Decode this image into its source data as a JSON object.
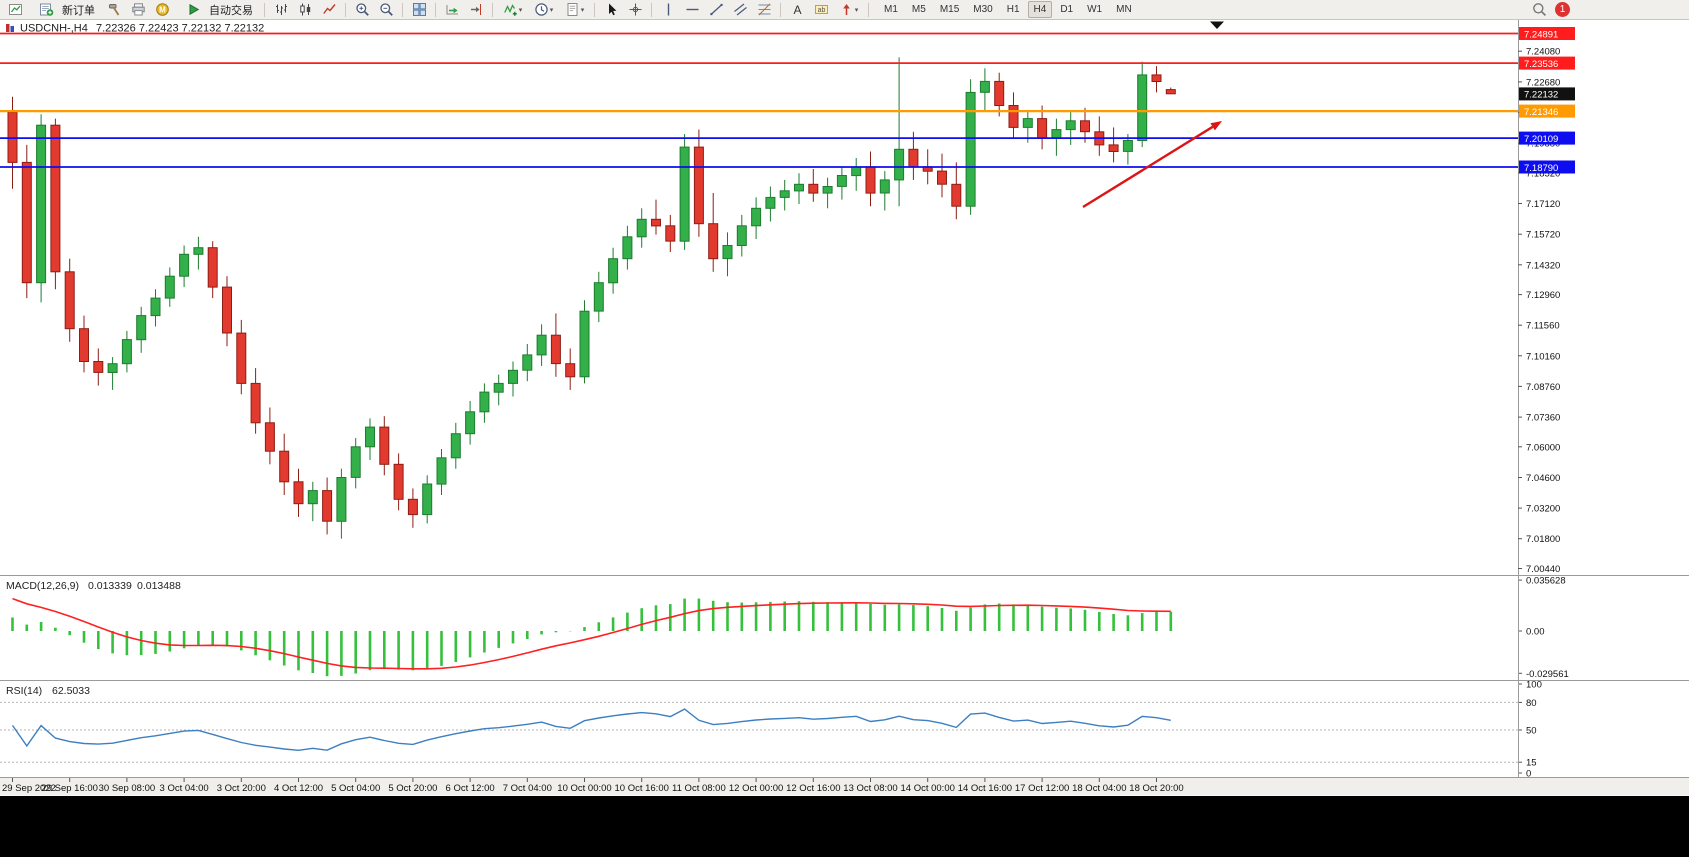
{
  "toolbar": {
    "items": [
      {
        "type": "icon",
        "name": "new-chart"
      },
      {
        "type": "button",
        "name": "new-order",
        "label": "新订单",
        "icon": "order-ticket"
      },
      {
        "type": "icon",
        "name": "hammer"
      },
      {
        "type": "icon",
        "name": "print"
      },
      {
        "type": "icon",
        "name": "community"
      },
      {
        "type": "button",
        "name": "autotrade",
        "label": "自动交易",
        "icon": "autotrade-play"
      },
      {
        "type": "sep"
      },
      {
        "type": "icon",
        "name": "bar-chart"
      },
      {
        "type": "icon",
        "name": "candle-chart"
      },
      {
        "type": "icon",
        "name": "line-chart"
      },
      {
        "type": "sep"
      },
      {
        "type": "icon",
        "name": "zoom-in"
      },
      {
        "type": "icon",
        "name": "zoom-out"
      },
      {
        "type": "sep"
      },
      {
        "type": "icon",
        "name": "tile-windows"
      },
      {
        "type": "sep"
      },
      {
        "type": "icon",
        "name": "auto-scroll"
      },
      {
        "type": "icon",
        "name": "chart-shift"
      },
      {
        "type": "sep"
      },
      {
        "type": "icon",
        "name": "indicators",
        "dropdown": true
      },
      {
        "type": "icon",
        "name": "periods",
        "dropdown": true
      },
      {
        "type": "icon",
        "name": "templates",
        "dropdown": true
      },
      {
        "type": "sep"
      },
      {
        "type": "icon",
        "name": "cursor"
      },
      {
        "type": "icon",
        "name": "crosshair"
      },
      {
        "type": "sep"
      },
      {
        "type": "icon",
        "name": "vertical-line"
      },
      {
        "type": "icon",
        "name": "horizontal-line"
      },
      {
        "type": "icon",
        "name": "trendline"
      },
      {
        "type": "icon",
        "name": "equidistant-channel"
      },
      {
        "type": "icon",
        "name": "fibonacci"
      },
      {
        "type": "sep"
      },
      {
        "type": "icon",
        "name": "text"
      },
      {
        "type": "icon",
        "name": "text-label"
      },
      {
        "type": "icon",
        "name": "arrows-tool",
        "dropdown": true
      },
      {
        "type": "sep"
      }
    ],
    "timeframes": [
      "M1",
      "M5",
      "M15",
      "M30",
      "H1",
      "H4",
      "D1",
      "W1",
      "MN"
    ],
    "active_timeframe": "H4",
    "notification_count": "1"
  },
  "chart": {
    "symbol_title": "USDCNH-,H4",
    "ohlc_quote": "7.22326 7.22423 7.22132 7.22132",
    "current_price": "7.22132",
    "price_axis_labels": [
      "7.24080",
      "7.22680",
      "7.21280",
      "7.19880",
      "7.18520",
      "7.17120",
      "7.15720",
      "7.14320",
      "7.12960",
      "7.11560",
      "7.10160",
      "7.08760",
      "7.07360",
      "7.06000",
      "7.04600",
      "7.03200",
      "7.01800",
      "7.00440"
    ],
    "time_axis_labels": [
      "29 Sep 2022",
      "29 Sep 16:00",
      "30 Sep 08:00",
      "3 Oct 04:00",
      "3 Oct 20:00",
      "4 Oct 12:00",
      "5 Oct 04:00",
      "5 Oct 20:00",
      "6 Oct 12:00",
      "7 Oct 04:00",
      "10 Oct 00:00",
      "10 Oct 16:00",
      "11 Oct 08:00",
      "12 Oct 00:00",
      "12 Oct 16:00",
      "13 Oct 08:00",
      "14 Oct 00:00",
      "14 Oct 16:00",
      "17 Oct 12:00",
      "18 Oct 04:00",
      "18 Oct 20:00"
    ],
    "levels": [
      {
        "label": "7.24891",
        "price": 7.24891,
        "color": "#ff1c1c",
        "width": 1.8,
        "type": "resistance"
      },
      {
        "label": "7.23536",
        "price": 7.23536,
        "color": "#ff1c1c",
        "width": 1.8,
        "type": "resistance"
      },
      {
        "label": "7.21346",
        "price": 7.21346,
        "color": "#ff9b00",
        "width": 2.2,
        "type": "pivot"
      },
      {
        "label": "7.20109",
        "price": 7.20109,
        "color": "#0d0df0",
        "width": 1.8,
        "type": "support"
      },
      {
        "label": "7.18790",
        "price": 7.1879,
        "color": "#0d0df0",
        "width": 1.8,
        "type": "support"
      }
    ],
    "colors": {
      "up": "#33b04a",
      "up_border": "#1d7c2f",
      "down": "#e23a2e",
      "down_border": "#8e1d14",
      "macd_hist": "#35c13c",
      "macd_signal": "#ff2020",
      "rsi_line": "#3d7fc1",
      "arrow": "#dd1414",
      "current_badge": "#111111"
    },
    "annotations": [
      {
        "type": "arrow",
        "direction": "up-right",
        "color": "#dd1414"
      }
    ]
  },
  "indicators": {
    "macd": {
      "title": "MACD(12,26,9)",
      "macd_value": "0.013339",
      "signal_value": "0.013488",
      "axis_labels": [
        "0.035628",
        "0.00",
        "-0.029561"
      ],
      "params": [
        12,
        26,
        9
      ]
    },
    "rsi": {
      "title": "RSI(14)",
      "value": "62.5033",
      "axis_labels": [
        "100",
        "80",
        "50",
        "15",
        "0"
      ],
      "level_lines": [
        80,
        50,
        15
      ],
      "period": 14
    }
  },
  "chart_data": {
    "type": "candlestick",
    "symbol": "USDCNH",
    "timeframe": "H4",
    "start_date": "29 Sep 2022",
    "end_date": "18 Oct 2022",
    "ylim": [
      7.0044,
      7.24891
    ],
    "ohlc": [
      [
        7.213,
        7.22,
        7.178,
        7.19
      ],
      [
        7.19,
        7.198,
        7.128,
        7.135
      ],
      [
        7.135,
        7.212,
        7.126,
        7.207
      ],
      [
        7.207,
        7.21,
        7.132,
        7.14
      ],
      [
        7.14,
        7.146,
        7.108,
        7.114
      ],
      [
        7.114,
        7.12,
        7.094,
        7.099
      ],
      [
        7.099,
        7.105,
        7.088,
        7.094
      ],
      [
        7.094,
        7.101,
        7.086,
        7.098
      ],
      [
        7.098,
        7.113,
        7.094,
        7.109
      ],
      [
        7.109,
        7.124,
        7.103,
        7.12
      ],
      [
        7.12,
        7.132,
        7.115,
        7.128
      ],
      [
        7.128,
        7.142,
        7.124,
        7.138
      ],
      [
        7.138,
        7.152,
        7.133,
        7.148
      ],
      [
        7.148,
        7.156,
        7.141,
        7.151
      ],
      [
        7.151,
        7.154,
        7.128,
        7.133
      ],
      [
        7.133,
        7.138,
        7.106,
        7.112
      ],
      [
        7.112,
        7.118,
        7.084,
        7.089
      ],
      [
        7.089,
        7.096,
        7.066,
        7.071
      ],
      [
        7.071,
        7.078,
        7.052,
        7.058
      ],
      [
        7.058,
        7.066,
        7.038,
        7.044
      ],
      [
        7.044,
        7.05,
        7.028,
        7.034
      ],
      [
        7.034,
        7.044,
        7.026,
        7.04
      ],
      [
        7.04,
        7.046,
        7.02,
        7.026
      ],
      [
        7.026,
        7.05,
        7.018,
        7.046
      ],
      [
        7.046,
        7.064,
        7.041,
        7.06
      ],
      [
        7.06,
        7.073,
        7.054,
        7.069
      ],
      [
        7.069,
        7.074,
        7.047,
        7.052
      ],
      [
        7.052,
        7.057,
        7.031,
        7.036
      ],
      [
        7.036,
        7.041,
        7.023,
        7.029
      ],
      [
        7.029,
        7.047,
        7.025,
        7.043
      ],
      [
        7.043,
        7.059,
        7.038,
        7.055
      ],
      [
        7.055,
        7.071,
        7.05,
        7.066
      ],
      [
        7.066,
        7.081,
        7.061,
        7.076
      ],
      [
        7.076,
        7.089,
        7.071,
        7.085
      ],
      [
        7.085,
        7.093,
        7.079,
        7.089
      ],
      [
        7.089,
        7.099,
        7.083,
        7.095
      ],
      [
        7.095,
        7.107,
        7.09,
        7.102
      ],
      [
        7.102,
        7.116,
        7.097,
        7.111
      ],
      [
        7.111,
        7.121,
        7.092,
        7.098
      ],
      [
        7.098,
        7.105,
        7.086,
        7.092
      ],
      [
        7.092,
        7.127,
        7.089,
        7.122
      ],
      [
        7.122,
        7.14,
        7.117,
        7.135
      ],
      [
        7.135,
        7.151,
        7.13,
        7.146
      ],
      [
        7.146,
        7.161,
        7.141,
        7.156
      ],
      [
        7.156,
        7.169,
        7.151,
        7.164
      ],
      [
        7.164,
        7.173,
        7.157,
        7.161
      ],
      [
        7.161,
        7.166,
        7.149,
        7.154
      ],
      [
        7.154,
        7.203,
        7.15,
        7.197
      ],
      [
        7.197,
        7.205,
        7.156,
        7.162
      ],
      [
        7.162,
        7.176,
        7.14,
        7.146
      ],
      [
        7.146,
        7.158,
        7.138,
        7.152
      ],
      [
        7.152,
        7.166,
        7.147,
        7.161
      ],
      [
        7.161,
        7.174,
        7.155,
        7.169
      ],
      [
        7.169,
        7.179,
        7.163,
        7.174
      ],
      [
        7.174,
        7.182,
        7.168,
        7.177
      ],
      [
        7.177,
        7.185,
        7.171,
        7.18
      ],
      [
        7.18,
        7.187,
        7.172,
        7.176
      ],
      [
        7.176,
        7.183,
        7.169,
        7.179
      ],
      [
        7.179,
        7.188,
        7.173,
        7.184
      ],
      [
        7.184,
        7.192,
        7.177,
        7.188
      ],
      [
        7.188,
        7.195,
        7.17,
        7.176
      ],
      [
        7.176,
        7.186,
        7.168,
        7.182
      ],
      [
        7.182,
        7.238,
        7.17,
        7.196
      ],
      [
        7.196,
        7.204,
        7.182,
        7.188
      ],
      [
        7.188,
        7.196,
        7.18,
        7.186
      ],
      [
        7.186,
        7.194,
        7.174,
        7.18
      ],
      [
        7.18,
        7.19,
        7.164,
        7.17
      ],
      [
        7.17,
        7.228,
        7.166,
        7.222
      ],
      [
        7.222,
        7.233,
        7.213,
        7.227
      ],
      [
        7.227,
        7.231,
        7.211,
        7.216
      ],
      [
        7.216,
        7.222,
        7.201,
        7.206
      ],
      [
        7.206,
        7.214,
        7.199,
        7.21
      ],
      [
        7.21,
        7.216,
        7.196,
        7.201
      ],
      [
        7.201,
        7.21,
        7.193,
        7.205
      ],
      [
        7.205,
        7.213,
        7.198,
        7.209
      ],
      [
        7.209,
        7.215,
        7.199,
        7.204
      ],
      [
        7.204,
        7.211,
        7.193,
        7.198
      ],
      [
        7.198,
        7.206,
        7.19,
        7.195
      ],
      [
        7.195,
        7.203,
        7.189,
        7.2
      ],
      [
        7.2,
        7.236,
        7.197,
        7.23
      ],
      [
        7.23,
        7.234,
        7.222,
        7.227
      ],
      [
        7.22326,
        7.22423,
        7.22132,
        7.22132
      ]
    ]
  }
}
